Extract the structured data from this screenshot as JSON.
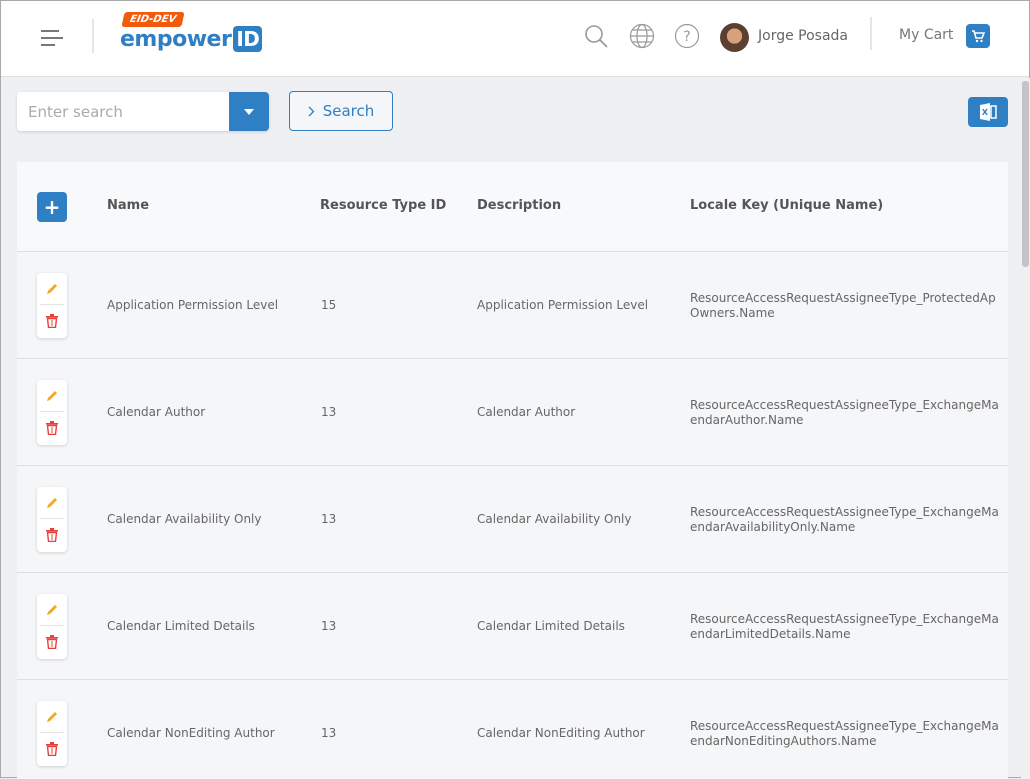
{
  "header": {
    "env_badge": "EID-DEV",
    "brand": "empower",
    "brand_id": "ID",
    "user_name": "Jorge Posada",
    "cart_label": "My Cart"
  },
  "toolbar": {
    "search_placeholder": "Enter search",
    "search_value": "",
    "search_button": "Search"
  },
  "colors": {
    "accent": "#2f7fc4",
    "env_badge": "#f25a0c",
    "edit": "#f5a623",
    "delete": "#e8403a"
  },
  "table": {
    "columns": [
      "Name",
      "Resource Type ID",
      "Description",
      "Locale Key (Unique Name)"
    ],
    "rows": [
      {
        "name": "Application Permission Level",
        "type_id": "15",
        "description": "Application Permission Level",
        "locale1": "ResourceAccessRequestAssigneeType_ProtectedAp",
        "locale2": "Owners.Name"
      },
      {
        "name": "Calendar Author",
        "type_id": "13",
        "description": "Calendar Author",
        "locale1": "ResourceAccessRequestAssigneeType_ExchangeMa",
        "locale2": "endarAuthor.Name"
      },
      {
        "name": "Calendar Availability Only",
        "type_id": "13",
        "description": "Calendar Availability Only",
        "locale1": "ResourceAccessRequestAssigneeType_ExchangeMa",
        "locale2": "endarAvailabilityOnly.Name"
      },
      {
        "name": "Calendar Limited Details",
        "type_id": "13",
        "description": "Calendar Limited Details",
        "locale1": "ResourceAccessRequestAssigneeType_ExchangeMa",
        "locale2": "endarLimitedDetails.Name"
      },
      {
        "name": "Calendar NonEditing Author",
        "type_id": "13",
        "description": "Calendar NonEditing Author",
        "locale1": "ResourceAccessRequestAssigneeType_ExchangeMa",
        "locale2": "endarNonEditingAuthors.Name"
      }
    ]
  }
}
